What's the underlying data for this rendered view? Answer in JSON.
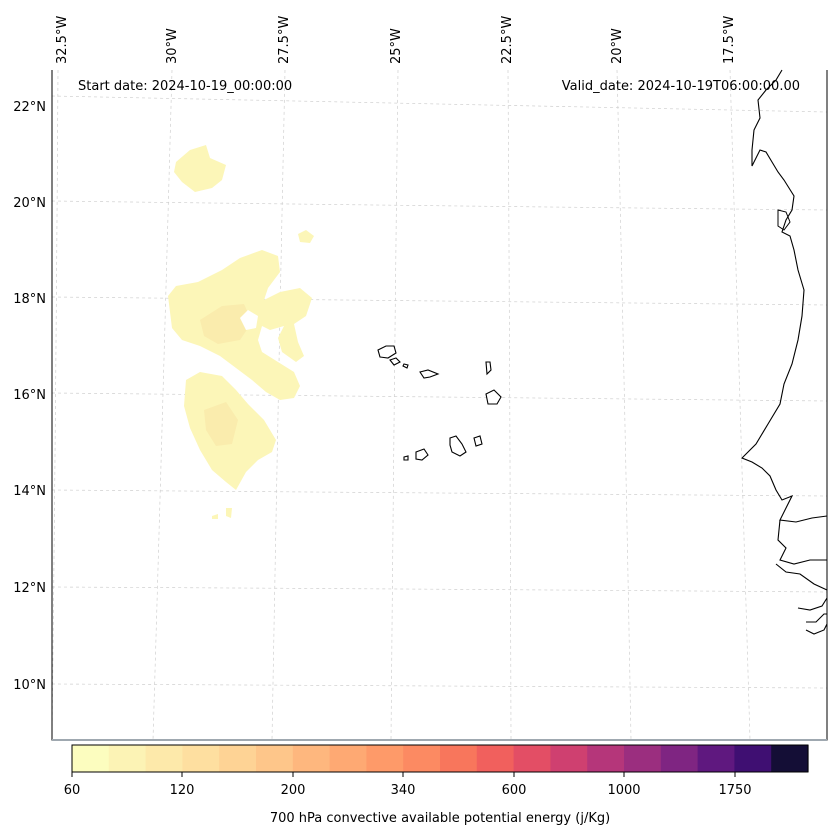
{
  "map": {
    "start_label": "Start date: 2024-10-19_00:00:00",
    "valid_label": "Valid_date: 2024-10-19T06:00:00.00",
    "longitude_labels": [
      "32.5°W",
      "30°W",
      "27.5°W",
      "25°W",
      "22.5°W",
      "20°W",
      "17.5°W"
    ],
    "latitude_labels": [
      "22°N",
      "20°N",
      "18°N",
      "16°N",
      "14°N",
      "12°N",
      "10°N"
    ]
  },
  "colorbar": {
    "label": "700 hPa convective available potential energy (j/Kg)",
    "tick_labels": [
      "60",
      "120",
      "200",
      "340",
      "600",
      "1000",
      "1750"
    ],
    "colors": [
      "#fcfdbf",
      "#fcf3b5",
      "#fde9aa",
      "#fedfa0",
      "#fed395",
      "#fec68a",
      "#feb77e",
      "#fea973",
      "#fe9a69",
      "#fc8a62",
      "#f8765c",
      "#f1605d",
      "#e34e65",
      "#cf4070",
      "#b5367a",
      "#9b2e7f",
      "#7f2582",
      "#5f187f",
      "#3f0f72",
      "#140e36"
    ]
  },
  "field_colors": {
    "low": "#fcf6b8",
    "mid": "#faecad",
    "high": "#f8e4a6"
  }
}
